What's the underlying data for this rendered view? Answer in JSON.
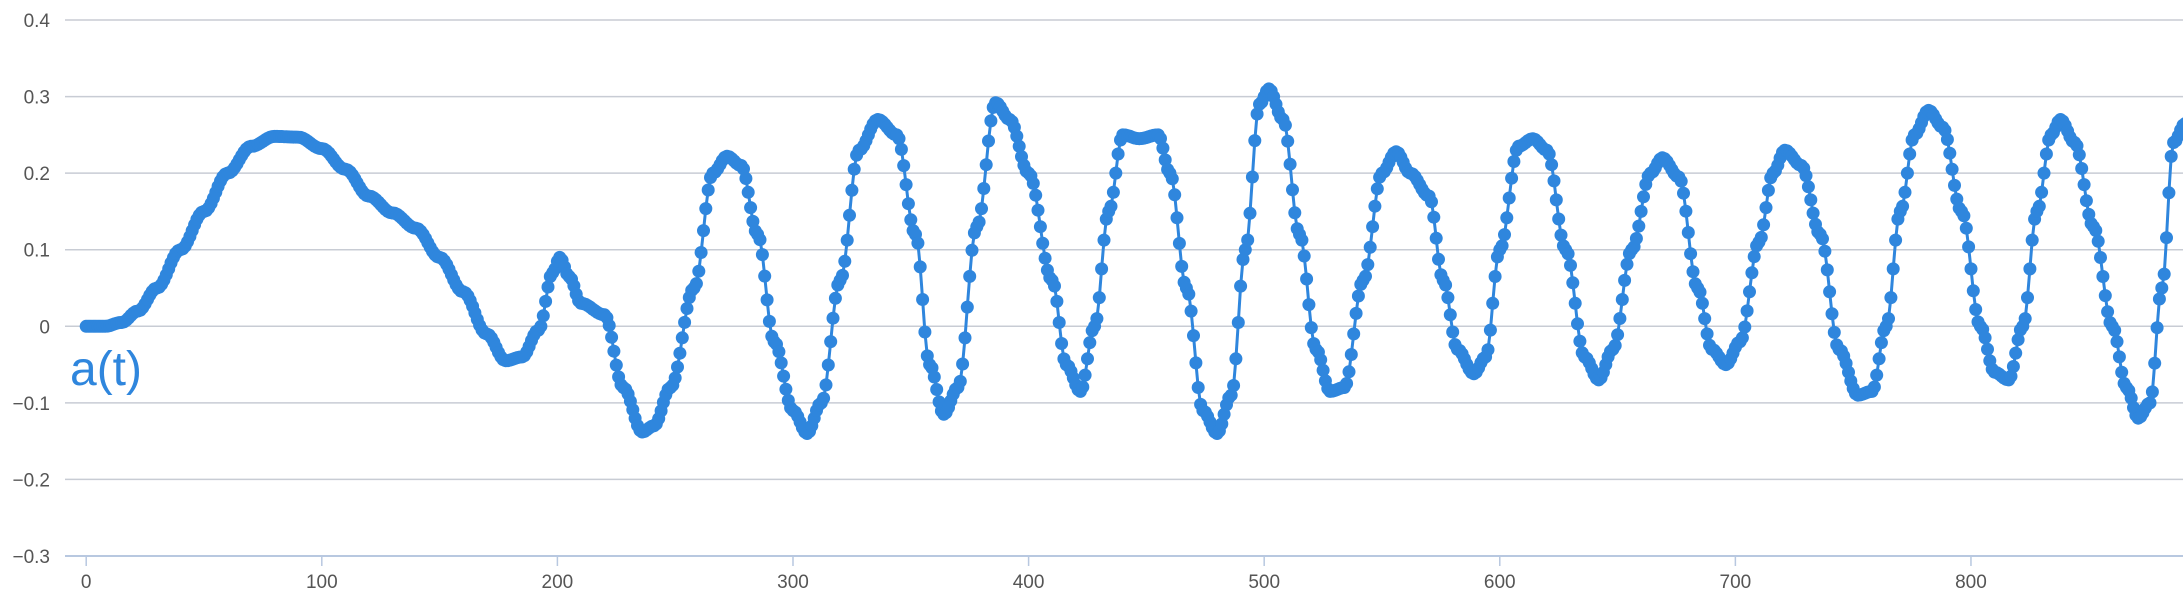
{
  "chart_data": {
    "type": "line",
    "title": "",
    "xlabel": "",
    "ylabel": "",
    "xlim": [
      -9,
      890
    ],
    "ylim": [
      -0.3,
      0.4
    ],
    "x_ticks": [
      "0",
      "100",
      "200",
      "300",
      "400",
      "500",
      "600",
      "700",
      "800"
    ],
    "y_ticks": [
      "0.4",
      "0.3",
      "0.2",
      "0.1",
      "0",
      "−0.1",
      "−0.2",
      "−0.3"
    ],
    "grid": true,
    "series": [
      {
        "name": "a(t)",
        "color": "#2f86dd",
        "markers": true,
        "keypoints": [
          [
            0,
            0.0
          ],
          [
            8,
            0.0
          ],
          [
            15,
            0.005
          ],
          [
            22,
            0.02
          ],
          [
            30,
            0.05
          ],
          [
            40,
            0.1
          ],
          [
            50,
            0.15
          ],
          [
            60,
            0.2
          ],
          [
            70,
            0.235
          ],
          [
            80,
            0.248
          ],
          [
            90,
            0.247
          ],
          [
            100,
            0.232
          ],
          [
            110,
            0.205
          ],
          [
            120,
            0.17
          ],
          [
            130,
            0.148
          ],
          [
            140,
            0.128
          ],
          [
            150,
            0.09
          ],
          [
            160,
            0.045
          ],
          [
            170,
            -0.01
          ],
          [
            178,
            -0.045
          ],
          [
            185,
            -0.04
          ],
          [
            192,
            -0.005
          ],
          [
            198,
            0.07
          ],
          [
            201,
            0.09
          ],
          [
            205,
            0.065
          ],
          [
            210,
            0.03
          ],
          [
            220,
            0.015
          ],
          [
            228,
            -0.08
          ],
          [
            236,
            -0.138
          ],
          [
            241,
            -0.13
          ],
          [
            248,
            -0.08
          ],
          [
            258,
            0.05
          ],
          [
            266,
            0.2
          ],
          [
            272,
            0.222
          ],
          [
            278,
            0.21
          ],
          [
            285,
            0.12
          ],
          [
            292,
            -0.02
          ],
          [
            300,
            -0.11
          ],
          [
            306,
            -0.14
          ],
          [
            312,
            -0.1
          ],
          [
            320,
            0.06
          ],
          [
            328,
            0.23
          ],
          [
            336,
            0.27
          ],
          [
            344,
            0.25
          ],
          [
            352,
            0.12
          ],
          [
            358,
            -0.05
          ],
          [
            364,
            -0.115
          ],
          [
            370,
            -0.08
          ],
          [
            378,
            0.13
          ],
          [
            386,
            0.292
          ],
          [
            392,
            0.27
          ],
          [
            400,
            0.2
          ],
          [
            410,
            0.06
          ],
          [
            416,
            -0.05
          ],
          [
            422,
            -0.085
          ],
          [
            428,
            0.0
          ],
          [
            434,
            0.15
          ],
          [
            440,
            0.25
          ],
          [
            447,
            0.245
          ],
          [
            455,
            0.25
          ],
          [
            460,
            0.2
          ],
          [
            467,
            0.05
          ],
          [
            474,
            -0.11
          ],
          [
            480,
            -0.14
          ],
          [
            486,
            -0.09
          ],
          [
            492,
            0.1
          ],
          [
            498,
            0.29
          ],
          [
            502,
            0.31
          ],
          [
            508,
            0.27
          ],
          [
            515,
            0.12
          ],
          [
            522,
            -0.03
          ],
          [
            528,
            -0.085
          ],
          [
            534,
            -0.08
          ],
          [
            542,
            0.06
          ],
          [
            550,
            0.2
          ],
          [
            556,
            0.228
          ],
          [
            562,
            0.2
          ],
          [
            570,
            0.17
          ],
          [
            576,
            0.06
          ],
          [
            582,
            -0.03
          ],
          [
            589,
            -0.062
          ],
          [
            594,
            -0.04
          ],
          [
            600,
            0.1
          ],
          [
            608,
            0.235
          ],
          [
            614,
            0.245
          ],
          [
            620,
            0.23
          ],
          [
            628,
            0.1
          ],
          [
            636,
            -0.04
          ],
          [
            642,
            -0.07
          ],
          [
            648,
            -0.03
          ],
          [
            656,
            0.1
          ],
          [
            664,
            0.2
          ],
          [
            669,
            0.22
          ],
          [
            676,
            0.195
          ],
          [
            684,
            0.05
          ],
          [
            690,
            -0.03
          ],
          [
            696,
            -0.05
          ],
          [
            702,
            -0.02
          ],
          [
            710,
            0.11
          ],
          [
            716,
            0.2
          ],
          [
            721,
            0.23
          ],
          [
            728,
            0.21
          ],
          [
            736,
            0.12
          ],
          [
            744,
            -0.03
          ],
          [
            752,
            -0.09
          ],
          [
            758,
            -0.085
          ],
          [
            764,
            0.0
          ],
          [
            770,
            0.15
          ],
          [
            776,
            0.25
          ],
          [
            782,
            0.282
          ],
          [
            788,
            0.26
          ],
          [
            796,
            0.15
          ],
          [
            804,
            0.0
          ],
          [
            810,
            -0.06
          ],
          [
            816,
            -0.07
          ],
          [
            822,
            0.0
          ],
          [
            828,
            0.15
          ],
          [
            834,
            0.25
          ],
          [
            838,
            0.27
          ],
          [
            844,
            0.24
          ],
          [
            852,
            0.13
          ],
          [
            860,
            0.0
          ],
          [
            866,
            -0.08
          ],
          [
            871,
            -0.12
          ],
          [
            876,
            -0.1
          ],
          [
            881,
            0.05
          ],
          [
            886,
            0.24
          ],
          [
            891,
            0.265
          ]
        ]
      }
    ]
  }
}
